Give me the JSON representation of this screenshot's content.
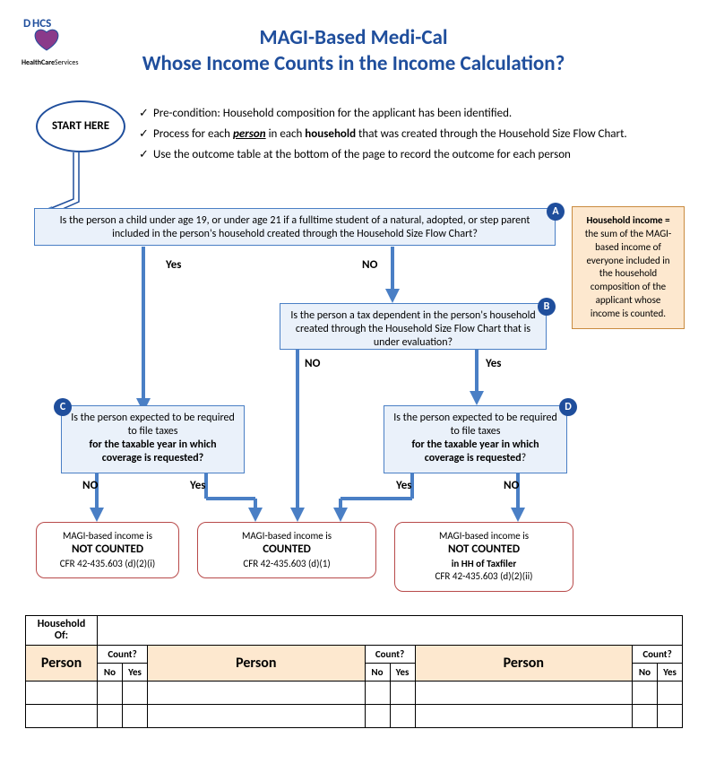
{
  "colors": {
    "blue": "#1f4e9c",
    "boxBorder": "#4a7fc5",
    "boxFill": "#eaf1fa",
    "outcomeBorder": "#b84a4a",
    "orange": "#fde8cf",
    "orangeBorder": "#c98b3f"
  },
  "logo": {
    "org": "HealthCareServices",
    "abbr": "DHCS"
  },
  "title": {
    "line1": "MAGI-Based Medi-Cal",
    "line2": "Whose Income Counts in the Income Calculation?"
  },
  "start": "START HERE",
  "preconditions": [
    "Pre-condition:  Household composition for the applicant has been identified.",
    "Process for each <b><i><u>person</u></i></b> in each <b>household</b> that was created through the Household Size Flow Chart.",
    "Use the outcome table at the bottom of the page to record the outcome for each person"
  ],
  "boxA": {
    "label": "A",
    "text": "Is the person a child under age 19, or under age 21 if a fulltime student of a natural, adopted, or step parent included in the person's household created through the Household Size Flow Chart?"
  },
  "boxB": {
    "label": "B",
    "text": "Is the person a tax dependent in the person's household created through the Household Size Flow Chart that is under evaluation?"
  },
  "boxC": {
    "label": "C",
    "text_pre": "Is  the person expected to be required to file taxes",
    "text_bold": "for the taxable year in which coverage is requested?"
  },
  "boxD": {
    "label": "D",
    "text_pre": "Is  the person expected to be required to file taxes",
    "text_bold": "for the taxable year in which coverage is requested",
    "text_suffix": "?"
  },
  "labels": {
    "yes": "Yes",
    "no": "NO",
    "no_mixed": "No"
  },
  "orange": {
    "title": "Household income =",
    "body": "the sum of the MAGI-based income of everyone included in the household composition of the applicant whose income is counted."
  },
  "outcomes": {
    "o1": {
      "pre": "MAGI-based income is",
      "big": "NOT COUNTED",
      "cfr": "CFR 42-435.603 (d)(2)(i)"
    },
    "o2": {
      "pre": "MAGI-based income is",
      "big": "COUNTED",
      "cfr": "CFR 42-435.603 (d)(1)"
    },
    "o3": {
      "pre": "MAGI-based income is",
      "big": "NOT COUNTED",
      "sub": "in HH of Taxfiler",
      "cfr": "CFR 42-435.603 (d)(2)(ii)"
    }
  },
  "table": {
    "hhof": "Household Of:",
    "person": "Person",
    "count": "Count?",
    "no": "No",
    "yes": "Yes"
  }
}
